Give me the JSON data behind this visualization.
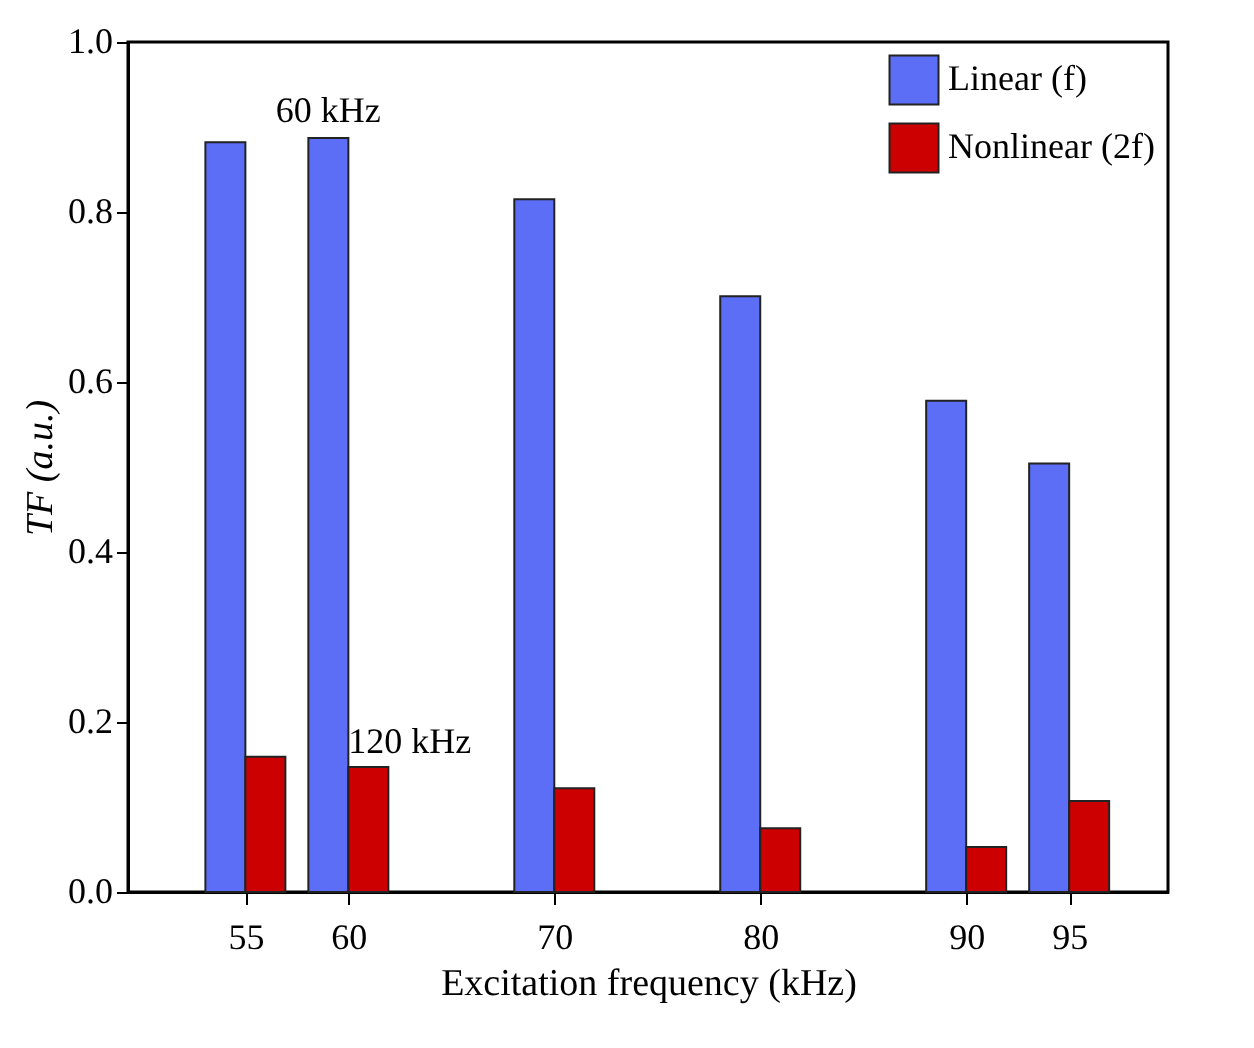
{
  "chart_data": {
    "type": "bar",
    "xlabel": "Excitation frequency (kHz)",
    "ylabel": "TF (a.u.)",
    "x": [
      55,
      60,
      70,
      80,
      90,
      95
    ],
    "series": [
      {
        "name": "Linear (f)",
        "color": "#5b6ef5",
        "values": [
          0.882,
          0.887,
          0.815,
          0.701,
          0.578,
          0.504
        ]
      },
      {
        "name": "Nonlinear (2f)",
        "color": "#cc0000",
        "values": [
          0.159,
          0.147,
          0.122,
          0.075,
          0.053,
          0.107
        ]
      }
    ],
    "xlim": [
      49.3,
      99.8
    ],
    "xticks": [
      55,
      60,
      70,
      80,
      90,
      95
    ],
    "ylim": [
      0,
      1
    ],
    "yticks": [
      {
        "value": 0,
        "label": "0.0"
      },
      {
        "value": 0.2,
        "label": "0.2"
      },
      {
        "value": 0.4,
        "label": "0.4"
      },
      {
        "value": 0.6,
        "label": "0.6"
      },
      {
        "value": 0.8,
        "label": "0.8"
      },
      {
        "value": 1,
        "label": "1.0"
      }
    ],
    "annotations": [
      {
        "text": "60 kHz",
        "x": 60,
        "y": 0.89
      },
      {
        "text": "120 kHz",
        "x": 60,
        "y": 0.147
      }
    ],
    "legend": "top right"
  }
}
